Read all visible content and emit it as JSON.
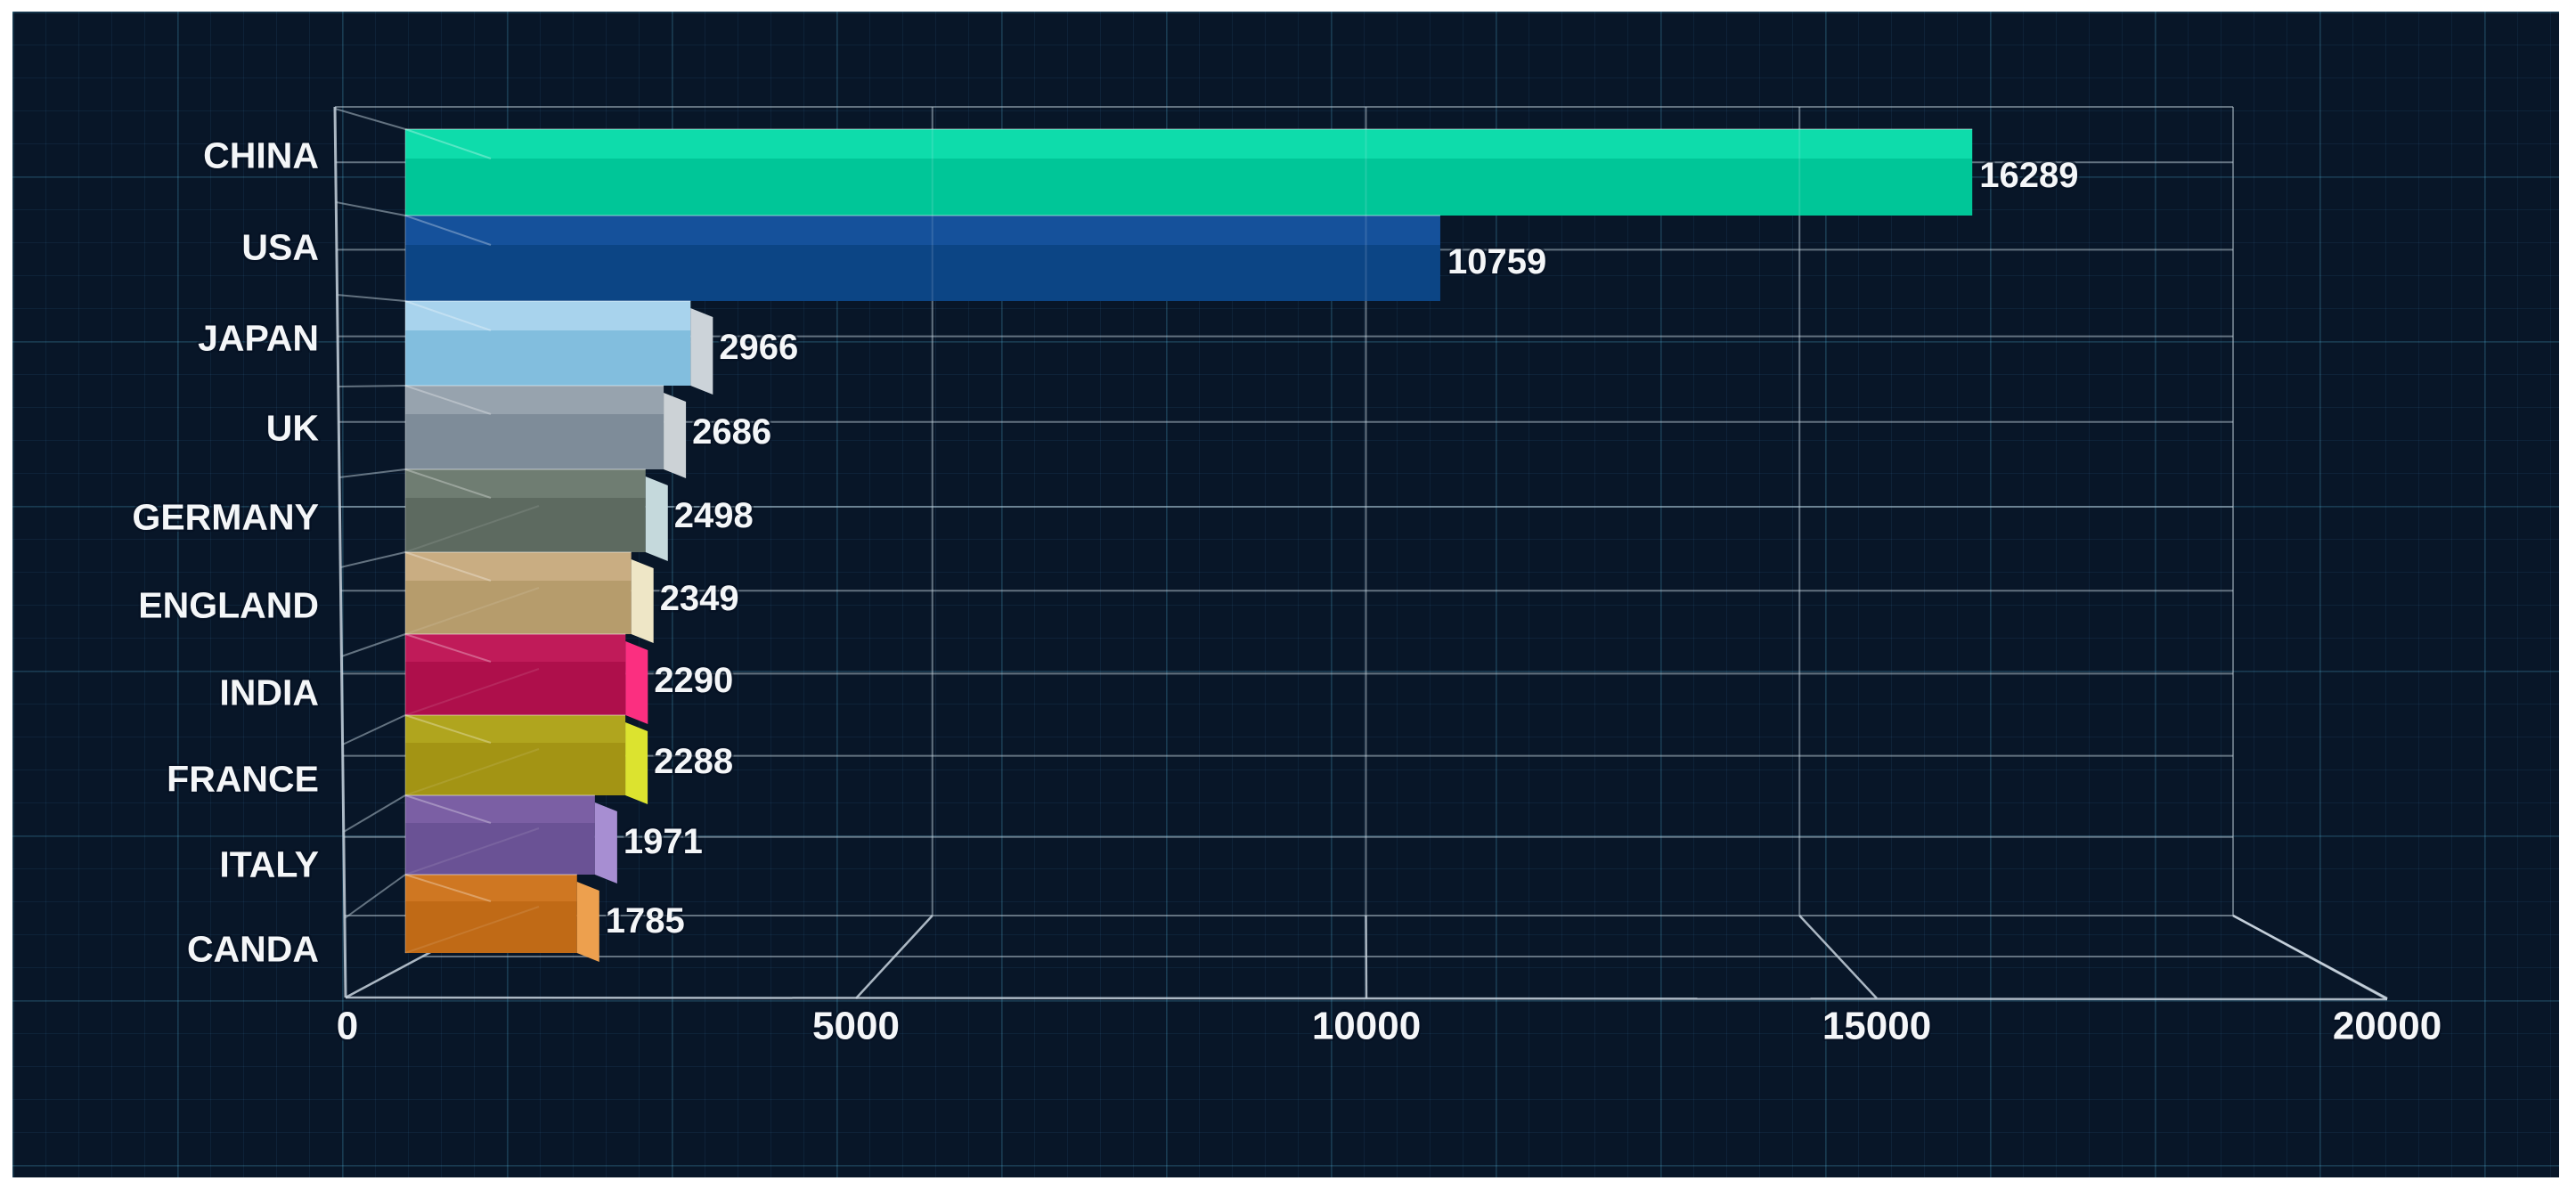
{
  "page": {
    "background_color": "#ffffff",
    "panel_background_color": "#081628"
  },
  "chart_data": {
    "type": "bar",
    "orientation": "horizontal",
    "style": "3d",
    "title": "",
    "xlabel": "",
    "ylabel": "",
    "categories": [
      "CHINA",
      "USA",
      "JAPAN",
      "UK",
      "GERMANY",
      "ENGLAND",
      "INDIA",
      "FRANCE",
      "ITALY",
      "CANDA"
    ],
    "values": [
      16289,
      10759,
      2966,
      2686,
      2498,
      2349,
      2290,
      2288,
      1971,
      1785
    ],
    "value_labels": [
      "16289",
      "10759",
      "2966",
      "2686",
      "2498",
      "2349",
      "2290",
      "2288",
      "1971",
      "1785"
    ],
    "x_ticks": [
      0,
      5000,
      10000,
      15000,
      20000
    ],
    "x_tick_labels": [
      "0",
      "5000",
      "10000",
      "15000",
      "20000"
    ],
    "xlim": [
      0,
      20000
    ],
    "grid": true,
    "legend": false,
    "bar_colors": [
      {
        "top": "#0edcab",
        "front": "#00c698",
        "cap": "#7fe9cd"
      },
      {
        "top": "#15519b",
        "front": "#0c4585",
        "cap": "#5c85c0"
      },
      {
        "top": "#a8d3ed",
        "front": "#82bede",
        "cap": "#ccd3d9"
      },
      {
        "top": "#97a3ae",
        "front": "#7e8c99",
        "cap": "#ccd2d6"
      },
      {
        "top": "#6f7d72",
        "front": "#5d6a60",
        "cap": "#c5d9dc"
      },
      {
        "top": "#c9ad82",
        "front": "#b69c6c",
        "cap": "#eee6c6"
      },
      {
        "top": "#c01b59",
        "front": "#ae0f4b",
        "cap": "#fb2f80"
      },
      {
        "top": "#b0a51e",
        "front": "#a39414",
        "cap": "#dce32f"
      },
      {
        "top": "#7b5fa4",
        "front": "#6a5295",
        "cap": "#a78ed2"
      },
      {
        "top": "#cf7722",
        "front": "#c06a16",
        "cap": "#eda04e"
      }
    ],
    "text_color": "#f4f6f8",
    "axis_line_color": "#aab6bf",
    "wall_line_color": "#8e9ca7"
  }
}
